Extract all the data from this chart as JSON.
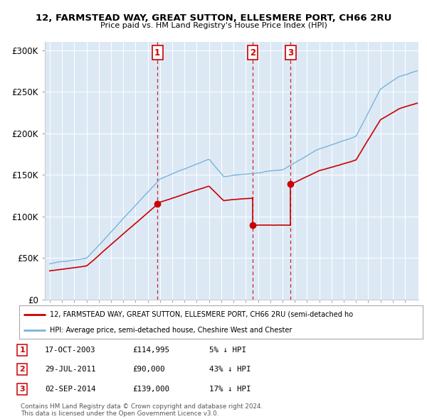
{
  "title": "12, FARMSTEAD WAY, GREAT SUTTON, ELLESMERE PORT, CH66 2RU",
  "subtitle": "Price paid vs. HM Land Registry's House Price Index (HPI)",
  "ylim": [
    0,
    310000
  ],
  "yticks": [
    0,
    50000,
    100000,
    150000,
    200000,
    250000,
    300000
  ],
  "ytick_labels": [
    "£0",
    "£50K",
    "£100K",
    "£150K",
    "£200K",
    "£250K",
    "£300K"
  ],
  "background_color": "#dce9f5",
  "red_line_color": "#cc0000",
  "blue_line_color": "#7ab3d9",
  "sale_year_floats": [
    2003.79,
    2011.57,
    2014.67
  ],
  "sale_prices": [
    114995,
    90000,
    139000
  ],
  "sale_labels": [
    "1",
    "2",
    "3"
  ],
  "legend_red_label": "12, FARMSTEAD WAY, GREAT SUTTON, ELLESMERE PORT, CH66 2RU (semi-detached ho",
  "legend_blue_label": "HPI: Average price, semi-detached house, Cheshire West and Chester",
  "table_rows": [
    [
      "1",
      "17-OCT-2003",
      "£114,995",
      "5% ↓ HPI"
    ],
    [
      "2",
      "29-JUL-2011",
      "£90,000",
      "43% ↓ HPI"
    ],
    [
      "3",
      "02-SEP-2014",
      "£139,000",
      "17% ↓ HPI"
    ]
  ],
  "footer_text": "Contains HM Land Registry data © Crown copyright and database right 2024.\nThis data is licensed under the Open Government Licence v3.0.",
  "vline_color": "#cc0000"
}
